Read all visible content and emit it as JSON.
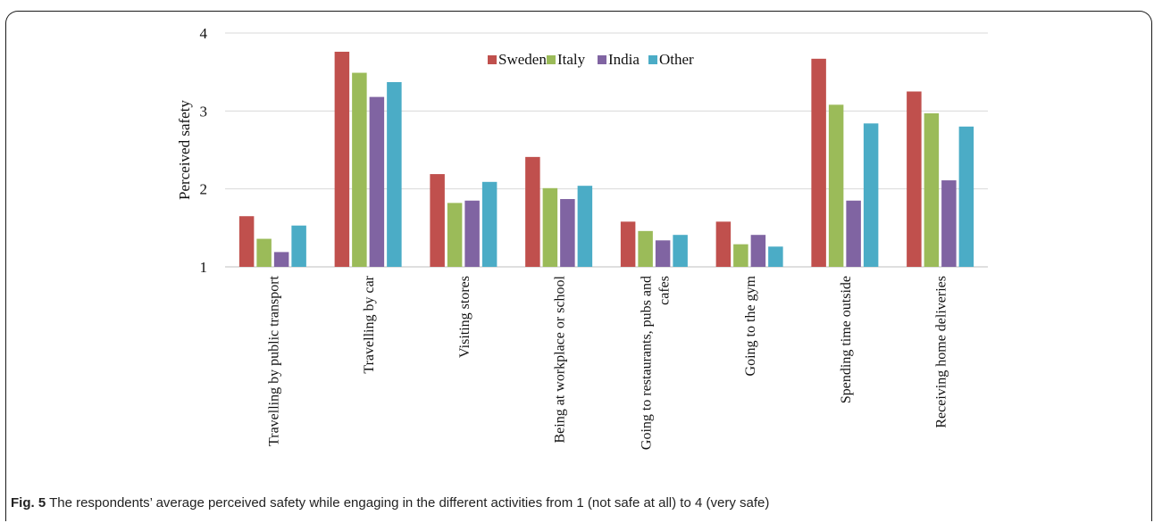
{
  "chart_data": {
    "type": "bar",
    "ylabel": "Perceived safety",
    "ylim": [
      1,
      4
    ],
    "yticks": [
      1,
      2,
      3,
      4
    ],
    "grid": "horizontal",
    "legend_position": "top-center",
    "categories": [
      [
        "Travelling by public transport"
      ],
      [
        "Travelling by car"
      ],
      [
        "Visiting stores"
      ],
      [
        "Being at workplace or school"
      ],
      [
        "Going to restaurants, pubs and",
        "cafes"
      ],
      [
        "Going to the gym"
      ],
      [
        "Spending time outside"
      ],
      [
        "Receiving home deliveries"
      ]
    ],
    "series": [
      {
        "name": "Sweden",
        "color": "#c0504d",
        "values": [
          1.65,
          3.76,
          2.19,
          2.41,
          1.58,
          1.58,
          3.67,
          3.25
        ]
      },
      {
        "name": "Italy",
        "color": "#9bbb59",
        "values": [
          1.36,
          3.49,
          1.82,
          2.01,
          1.46,
          1.29,
          3.08,
          2.97
        ]
      },
      {
        "name": "India",
        "color": "#8064a2",
        "values": [
          1.19,
          3.18,
          1.85,
          1.87,
          1.34,
          1.41,
          1.85,
          2.11
        ]
      },
      {
        "name": "Other",
        "color": "#4bacc6",
        "values": [
          1.53,
          3.37,
          2.09,
          2.04,
          1.41,
          1.26,
          2.84,
          2.8
        ]
      }
    ]
  },
  "caption": {
    "label": "Fig. 5",
    "text": " The respondents’ average perceived safety while engaging in the different activities from 1 (not safe at all) to 4 (very safe)"
  }
}
